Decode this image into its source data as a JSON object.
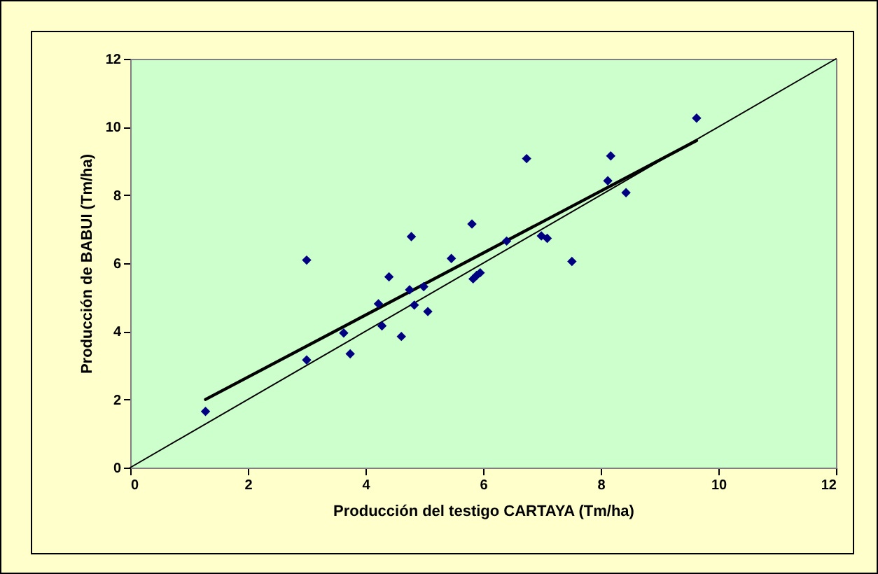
{
  "chart_data": {
    "type": "scatter",
    "xlabel": "Producción del testigo CARTAYA (Tm/ha)",
    "ylabel": "Producción de BABUI (Tm/ha)",
    "xlim": [
      0,
      12
    ],
    "ylim": [
      0,
      12
    ],
    "xticks": [
      0,
      2,
      4,
      6,
      8,
      10,
      12
    ],
    "yticks": [
      0,
      2,
      4,
      6,
      8,
      10,
      12
    ],
    "grid": false,
    "marker": "diamond",
    "series": [
      {
        "color": "#000080",
        "x": [
          1.28,
          3.0,
          3.0,
          3.63,
          3.74,
          4.22,
          4.28,
          4.4,
          4.61,
          4.75,
          4.78,
          4.83,
          4.99,
          5.06,
          5.46,
          5.81,
          5.83,
          5.89,
          5.95,
          6.4,
          6.74,
          6.99,
          7.09,
          7.51,
          8.12,
          8.17,
          8.43,
          9.63
        ],
        "values": [
          1.65,
          6.09,
          3.16,
          3.95,
          3.34,
          4.81,
          4.16,
          5.6,
          3.85,
          5.22,
          6.78,
          4.77,
          5.31,
          4.58,
          6.14,
          7.15,
          5.54,
          5.64,
          5.72,
          6.65,
          9.07,
          6.8,
          6.73,
          6.05,
          8.42,
          9.15,
          8.07,
          10.26
        ]
      },
      {
        "type": "line",
        "marker": "none",
        "color": "#000000",
        "x": [
          1.28,
          9.63
        ],
        "values": [
          2.0,
          9.6
        ]
      },
      {
        "type": "line",
        "marker": "none",
        "color": "#000000",
        "x": [
          0,
          12
        ],
        "values": [
          0,
          12
        ]
      }
    ]
  }
}
